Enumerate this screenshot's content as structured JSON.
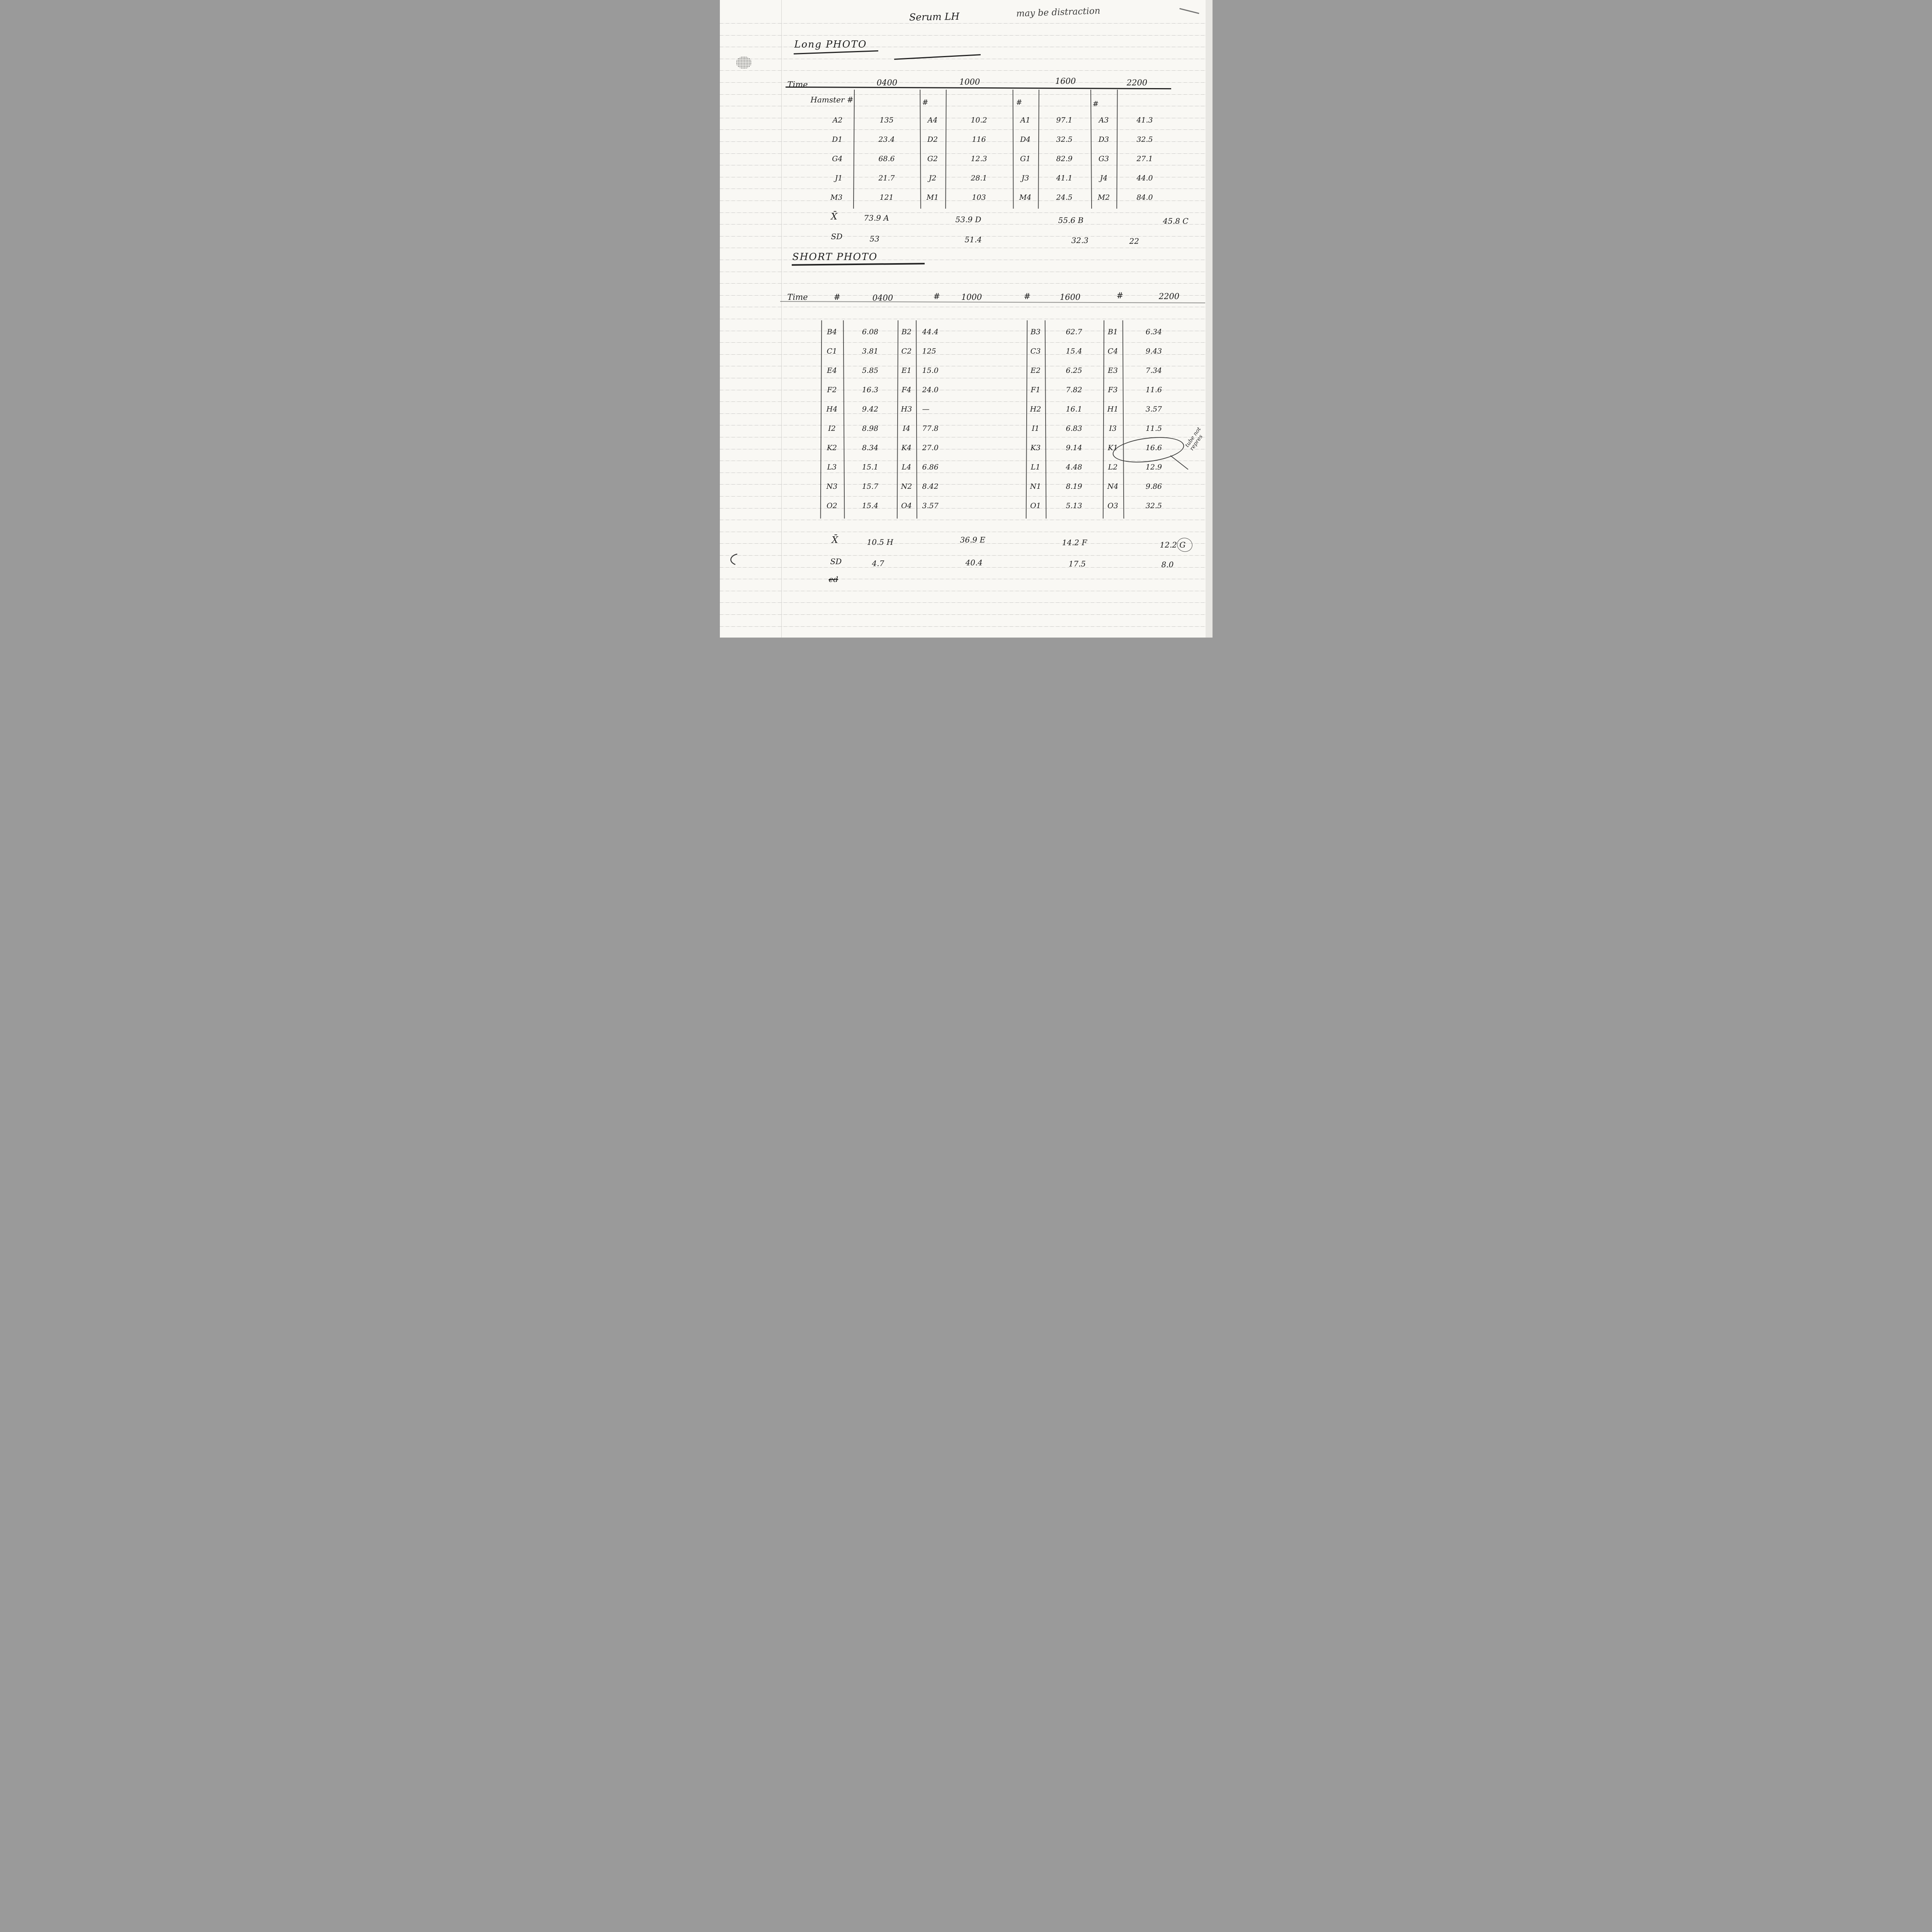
{
  "page": {
    "title": "Serum LH",
    "top_note": "may be distraction",
    "mean_label": "X̄",
    "sd_label": "SD",
    "footer_note": "ed"
  },
  "long_photo": {
    "title": "Long PHOTO",
    "time_label": "Time",
    "times": [
      "0400",
      "1000",
      "1600",
      "2200"
    ],
    "row_header_label": "Hamster #",
    "hash_label": "#",
    "rows": [
      {
        "c": [
          "A2",
          "135",
          "A4",
          "10.2",
          "A1",
          "97.1",
          "A3",
          "41.3"
        ]
      },
      {
        "c": [
          "D1",
          "23.4",
          "D2",
          "116",
          "D4",
          "32.5",
          "D3",
          "32.5"
        ]
      },
      {
        "c": [
          "G4",
          "68.6",
          "G2",
          "12.3",
          "G1",
          "82.9",
          "G3",
          "27.1"
        ]
      },
      {
        "c": [
          "J1",
          "21.7",
          "J2",
          "28.1",
          "J3",
          "41.1",
          "J4",
          "44.0"
        ]
      },
      {
        "c": [
          "M3",
          "121",
          "M1",
          "103",
          "M4",
          "24.5",
          "M2",
          "84.0"
        ]
      }
    ],
    "mean": [
      "73.9 A",
      "53.9 D",
      "55.6 B",
      "45.8 C"
    ],
    "sd": [
      "53",
      "51.4",
      "32.3",
      "22"
    ]
  },
  "short_photo": {
    "title": "SHORT PHOTO",
    "time_label": "Time",
    "times": [
      "0400",
      "1000",
      "1600",
      "2200"
    ],
    "hash_label": "#",
    "rows": [
      {
        "c": [
          "B4",
          "6.08",
          "B2",
          "44.4",
          "B3",
          "62.7",
          "B1",
          "6.34"
        ]
      },
      {
        "c": [
          "C1",
          "3.81",
          "C2",
          "125",
          "C3",
          "15.4",
          "C4",
          "9.43"
        ]
      },
      {
        "c": [
          "E4",
          "5.85",
          "E1",
          "15.0",
          "E2",
          "6.25",
          "E3",
          "7.34"
        ]
      },
      {
        "c": [
          "F2",
          "16.3",
          "F4",
          "24.0",
          "F1",
          "7.82",
          "F3",
          "11.6"
        ]
      },
      {
        "c": [
          "H4",
          "9.42",
          "H3",
          "—",
          "H2",
          "16.1",
          "H1",
          "3.57"
        ]
      },
      {
        "c": [
          "I2",
          "8.98",
          "I4",
          "77.8",
          "I1",
          "6.83",
          "I3",
          "11.5"
        ]
      },
      {
        "c": [
          "K2",
          "8.34",
          "K4",
          "27.0",
          "K3",
          "9.14",
          "K1",
          "16.6"
        ]
      },
      {
        "c": [
          "L3",
          "15.1",
          "L4",
          "6.86",
          "L1",
          "4.48",
          "L2",
          "12.9"
        ]
      },
      {
        "c": [
          "N3",
          "15.7",
          "N2",
          "8.42",
          "N1",
          "8.19",
          "N4",
          "9.86"
        ]
      },
      {
        "c": [
          "O2",
          "15.4",
          "O4",
          "3.57",
          "O1",
          "5.13",
          "O3",
          "32.5"
        ]
      }
    ],
    "mean": [
      "10.5 H",
      "36.9 E",
      "14.2 F",
      "12.2 G"
    ],
    "sd": [
      "4.7",
      "40.4",
      "17.5",
      "8.0"
    ],
    "annotation": "tube not repres"
  }
}
